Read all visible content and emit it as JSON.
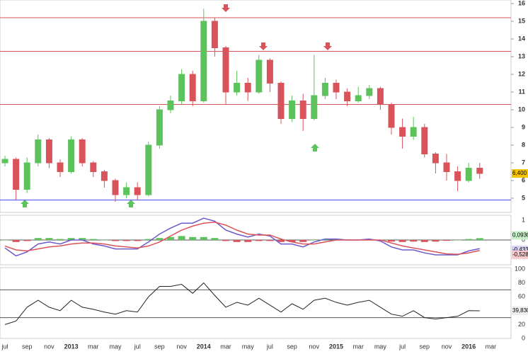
{
  "chart_data": [
    {
      "type": "candlestick",
      "up_color": "#5cc35c",
      "down_color": "#d9545a",
      "candles": [
        [
          7.0,
          7.4,
          6.8,
          7.2
        ],
        [
          7.2,
          7.3,
          4.9,
          5.5
        ],
        [
          5.5,
          7.3,
          5.3,
          7.0
        ],
        [
          7.0,
          8.6,
          6.8,
          8.3
        ],
        [
          8.3,
          8.4,
          6.7,
          7.0
        ],
        [
          7.0,
          7.2,
          6.2,
          6.5
        ],
        [
          6.5,
          8.5,
          6.4,
          8.3
        ],
        [
          8.3,
          8.4,
          6.8,
          7.0
        ],
        [
          7.0,
          7.1,
          6.2,
          6.5
        ],
        [
          6.5,
          6.6,
          5.6,
          6.0
        ],
        [
          6.0,
          6.1,
          4.8,
          5.2
        ],
        [
          5.2,
          5.9,
          5.0,
          5.6
        ],
        [
          5.6,
          5.9,
          4.9,
          5.2
        ],
        [
          5.2,
          8.2,
          5.1,
          8.0
        ],
        [
          8.0,
          10.2,
          7.8,
          10.0
        ],
        [
          10.0,
          10.8,
          9.8,
          10.5
        ],
        [
          10.5,
          12.3,
          10.3,
          12.0
        ],
        [
          12.0,
          12.2,
          10.2,
          10.5
        ],
        [
          10.5,
          15.7,
          10.4,
          15.0
        ],
        [
          15.0,
          15.2,
          13.0,
          13.5
        ],
        [
          13.5,
          13.6,
          10.3,
          11.0
        ],
        [
          11.0,
          12.2,
          10.8,
          11.5
        ],
        [
          11.5,
          11.8,
          10.5,
          11.0
        ],
        [
          11.0,
          13.1,
          10.9,
          12.8
        ],
        [
          12.8,
          12.9,
          11.0,
          11.5
        ],
        [
          11.5,
          11.6,
          9.2,
          9.5
        ],
        [
          9.5,
          10.8,
          9.3,
          10.5
        ],
        [
          10.5,
          10.9,
          8.8,
          9.5
        ],
        [
          9.5,
          13.1,
          9.4,
          10.8
        ],
        [
          10.8,
          11.8,
          10.6,
          11.5
        ],
        [
          11.5,
          11.7,
          10.6,
          11.0
        ],
        [
          11.0,
          11.2,
          10.2,
          10.5
        ],
        [
          10.5,
          11.3,
          10.4,
          10.8
        ],
        [
          10.8,
          11.4,
          10.6,
          11.2
        ],
        [
          11.2,
          11.3,
          10.0,
          10.3
        ],
        [
          10.3,
          10.4,
          8.6,
          9.0
        ],
        [
          9.0,
          9.5,
          7.8,
          8.5
        ],
        [
          8.5,
          9.6,
          8.3,
          9.0
        ],
        [
          9.0,
          9.2,
          7.3,
          7.5
        ],
        [
          7.5,
          7.6,
          6.4,
          7.0
        ],
        [
          7.0,
          7.5,
          6.0,
          6.5
        ],
        [
          6.5,
          6.8,
          5.4,
          6.0
        ],
        [
          6.0,
          7.0,
          5.9,
          6.7
        ],
        [
          6.7,
          7.0,
          6.1,
          6.4
        ]
      ],
      "ylim": [
        4.2,
        16.2
      ],
      "yticks": [
        5,
        6,
        7,
        8,
        9,
        10,
        11,
        12,
        13,
        14,
        15,
        16
      ],
      "levels": [
        {
          "value": 15.2,
          "color": "#d9545a"
        },
        {
          "value": 13.3,
          "color": "#d9545a"
        },
        {
          "value": 10.3,
          "color": "#d9545a"
        },
        {
          "value": 4.9,
          "color": "#4a4aff"
        }
      ],
      "last_label": "6,400",
      "xticks": [
        "jul",
        "sep",
        "nov",
        "2013",
        "mar",
        "may",
        "jul",
        "sep",
        "nov",
        "2014",
        "mar",
        "may",
        "jul",
        "sep",
        "nov",
        "2015",
        "mar",
        "may",
        "jul",
        "sep",
        "nov",
        "2016",
        "mar"
      ]
    },
    {
      "type": "macd",
      "ylim": [
        -1.25,
        1.25
      ],
      "yticks": [
        1,
        0
      ],
      "series": [
        {
          "color": "#6a5acd",
          "values": [
            -0.4,
            -0.8,
            -0.6,
            -0.2,
            -0.1,
            -0.2,
            0,
            0,
            -0.2,
            -0.3,
            -0.45,
            -0.45,
            -0.45,
            -0.1,
            0.3,
            0.6,
            0.85,
            0.85,
            1.1,
            0.95,
            0.5,
            0.3,
            0.15,
            0.3,
            0.2,
            -0.2,
            -0.2,
            -0.35,
            -0.1,
            0.05,
            0.05,
            0,
            0,
            0.05,
            -0.05,
            -0.35,
            -0.5,
            -0.5,
            -0.65,
            -0.75,
            -0.75,
            -0.75,
            -0.55,
            -0.433
          ],
          "last_label": "-0,433"
        },
        {
          "color": "#d9545a",
          "values": [
            -0.3,
            -0.5,
            -0.55,
            -0.45,
            -0.35,
            -0.3,
            -0.2,
            -0.15,
            -0.15,
            -0.2,
            -0.3,
            -0.35,
            -0.4,
            -0.3,
            -0.1,
            0.2,
            0.5,
            0.7,
            0.85,
            0.9,
            0.75,
            0.5,
            0.3,
            0.25,
            0.25,
            0.05,
            -0.1,
            -0.2,
            -0.2,
            -0.1,
            0,
            0,
            0,
            0,
            0,
            -0.15,
            -0.3,
            -0.4,
            -0.5,
            -0.6,
            -0.7,
            -0.72,
            -0.65,
            -0.528
          ],
          "last_label": "-0,528"
        }
      ],
      "histogram": {
        "up_color": "#5cc35c",
        "down_color": "#d9545a",
        "values": [
          0,
          -0.1,
          -0.05,
          0.1,
          0.1,
          0.05,
          0.1,
          0.1,
          0.05,
          0,
          -0.05,
          -0.05,
          -0.05,
          0.05,
          0.1,
          0.15,
          0.2,
          0.15,
          0.15,
          0.1,
          -0.05,
          -0.1,
          -0.1,
          -0.05,
          -0.05,
          -0.1,
          -0.1,
          -0.1,
          0,
          0.05,
          0.05,
          0.03,
          0.02,
          0.02,
          0,
          -0.08,
          -0.1,
          -0.08,
          -0.1,
          -0.08,
          -0.04,
          0,
          0.05,
          0.093
        ],
        "last_label": "0,0930"
      }
    },
    {
      "type": "rsi",
      "ylim": [
        0,
        100
      ],
      "yticks": [
        100,
        80,
        60,
        40,
        20,
        0
      ],
      "levels": [
        70,
        30
      ],
      "color": "#222222",
      "values": [
        20,
        25,
        45,
        55,
        45,
        40,
        55,
        45,
        42,
        38,
        35,
        40,
        38,
        60,
        75,
        75,
        78,
        65,
        80,
        62,
        45,
        52,
        48,
        58,
        48,
        38,
        50,
        42,
        55,
        58,
        52,
        48,
        52,
        55,
        45,
        35,
        32,
        40,
        30,
        28,
        30,
        32,
        40,
        39.83
      ],
      "last_label": "39,830"
    }
  ]
}
